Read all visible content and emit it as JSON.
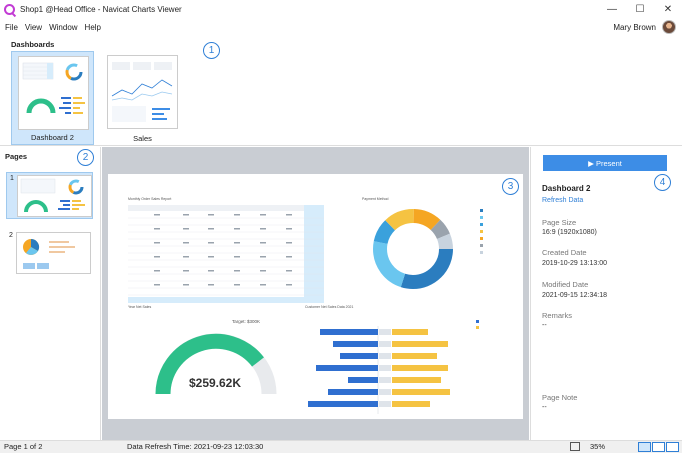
{
  "window": {
    "title": "Shop1 @Head Office - Navicat Charts Viewer",
    "minimize": "—",
    "maximize": "☐",
    "close": "✕"
  },
  "menu": {
    "items": [
      "File",
      "View",
      "Window",
      "Help"
    ],
    "user_name": "Mary Brown"
  },
  "dashboards": {
    "label": "Dashboards",
    "items": [
      {
        "label": "Dashboard 2",
        "selected": true
      },
      {
        "label": "Sales",
        "selected": false
      }
    ]
  },
  "pages": {
    "label": "Pages",
    "items": [
      {
        "number": "1",
        "selected": true
      },
      {
        "number": "2",
        "selected": false
      }
    ]
  },
  "callouts": [
    "1",
    "2",
    "3",
    "4"
  ],
  "canvas": {
    "table_title": "Monthly Order Sales Report",
    "donut_title": "Payment Method",
    "gauge_title": "Year Net Sales",
    "gauge_target": "Target: $300K",
    "gauge_value": "$259.62K",
    "bar_title": "Customer Net Sales Data 2021"
  },
  "properties": {
    "present_label": "▶ Present",
    "title": "Dashboard 2",
    "refresh_link": "Refresh Data",
    "page_size_label": "Page Size",
    "page_size_value": "16:9 (1920x1080)",
    "created_label": "Created Date",
    "created_value": "2019-10-29 13:13:00",
    "modified_label": "Modified Date",
    "modified_value": "2021-09-15 12:34:18",
    "remarks_label": "Remarks",
    "remarks_value": "--",
    "page_note_label": "Page Note",
    "page_note_value": "--"
  },
  "status": {
    "page": "Page 1 of 2",
    "refresh_time": "Data Refresh Time: 2021-09-23 12:03:30",
    "zoom": "35%"
  },
  "colors": {
    "accent": "#3d8de6",
    "selection": "#cfe6fb",
    "canvas_bg": "#c9cdd3",
    "gauge": "#2dbf8a",
    "bar_blue": "#2f6fd0",
    "bar_yellow": "#f5c342"
  }
}
